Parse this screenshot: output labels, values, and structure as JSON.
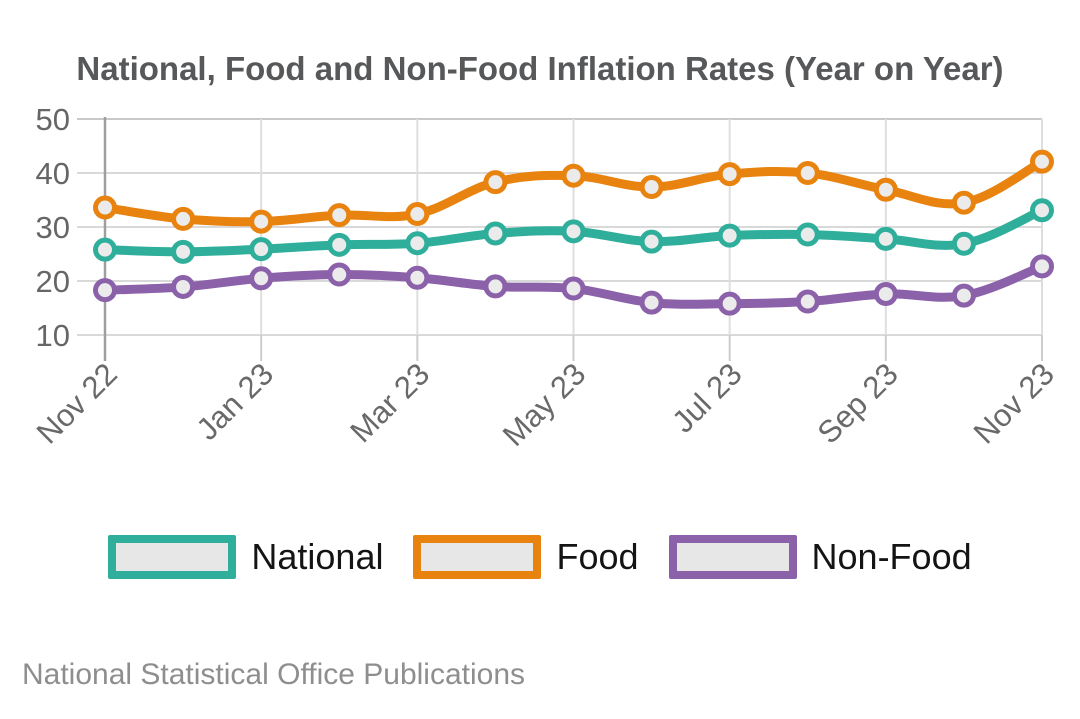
{
  "title": "National, Food and Non-Food Inflation Rates (Year on Year)",
  "footer": "National Statistical Office Publications",
  "legend": [
    {
      "label": "National",
      "color": "#2FAF9B"
    },
    {
      "label": "Food",
      "color": "#E8830F"
    },
    {
      "label": "Non-Food",
      "color": "#8B61A9"
    }
  ],
  "colors": {
    "national": "#2FAF9B",
    "food": "#E8830F",
    "non_food": "#8B61A9",
    "marker_fill": "#EBEBEB",
    "gridline": "#D9D9D9",
    "axis_line": "#9F9F9F",
    "tick_text": "#696969",
    "title_text": "#57585A"
  },
  "chart_data": {
    "type": "line",
    "title": "National, Food and Non-Food Inflation Rates (Year on Year)",
    "x": [
      "Nov 22",
      "Dec 22",
      "Jan 23",
      "Feb 23",
      "Mar 23",
      "Apr 23",
      "May 23",
      "Jun 23",
      "Jul 23",
      "Aug 23",
      "Sep 23",
      "Oct 23",
      "Nov 23"
    ],
    "x_tick_labels_shown": [
      "Nov 22",
      "Jan 23",
      "Mar 23",
      "May 23",
      "Jul 23",
      "Sep 23",
      "Nov 23"
    ],
    "series": [
      {
        "name": "Food",
        "color": "#E8830F",
        "values": [
          33.6,
          31.5,
          31.0,
          32.2,
          32.4,
          38.3,
          39.5,
          37.4,
          39.8,
          40.0,
          36.9,
          34.5,
          42.1
        ]
      },
      {
        "name": "National",
        "color": "#2FAF9B",
        "values": [
          25.8,
          25.4,
          25.9,
          26.7,
          27.0,
          28.8,
          29.2,
          27.3,
          28.4,
          28.6,
          27.8,
          26.9,
          33.1
        ]
      },
      {
        "name": "Non-Food",
        "color": "#8B61A9",
        "values": [
          18.3,
          18.9,
          20.5,
          21.2,
          20.6,
          19.0,
          18.6,
          16.0,
          15.8,
          16.2,
          17.6,
          17.3,
          22.7
        ]
      }
    ],
    "ylim": [
      10,
      50
    ],
    "yticks": [
      10,
      20,
      30,
      40,
      50
    ],
    "xlabel": "",
    "ylabel": "",
    "grid": true,
    "marker": "open-circle",
    "legend_position": "bottom",
    "source": "National Statistical Office Publications"
  }
}
